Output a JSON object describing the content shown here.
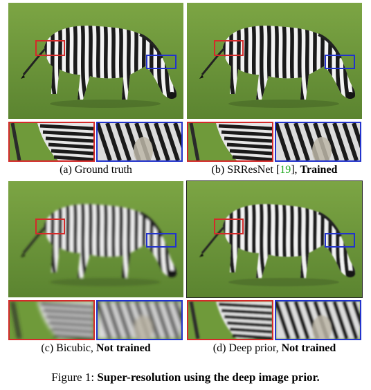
{
  "panels": [
    {
      "id": "a",
      "caption_main": "(a) Ground truth",
      "caption_ref": "",
      "caption_tail": "",
      "caption_bold": "",
      "quality": "sharp"
    },
    {
      "id": "b",
      "caption_main": "(b) SRResNet [",
      "caption_ref": "19",
      "caption_tail": "], ",
      "caption_bold": "Trained",
      "quality": "sharp"
    },
    {
      "id": "c",
      "caption_main": "(c) Bicubic, ",
      "caption_ref": "",
      "caption_tail": "",
      "caption_bold": "Not trained",
      "quality": "blurry"
    },
    {
      "id": "d",
      "caption_main": "(d) Deep prior, ",
      "caption_ref": "",
      "caption_tail": "",
      "caption_bold": "Not trained",
      "quality": "medium"
    }
  ],
  "figure_caption": {
    "prefix": "Figure 1: ",
    "bold": "Super-resolution using the deep image prior."
  },
  "colors": {
    "grass": "#6f9a3a",
    "grass_dark": "#5b8430",
    "red_box": "#d42a2a",
    "blue_box": "#2233cc",
    "ref_green": "#22aa22"
  },
  "icons": {
    "zebra": "zebra-image",
    "crop_left": "zebra-hind-crop",
    "crop_right": "zebra-head-crop"
  }
}
